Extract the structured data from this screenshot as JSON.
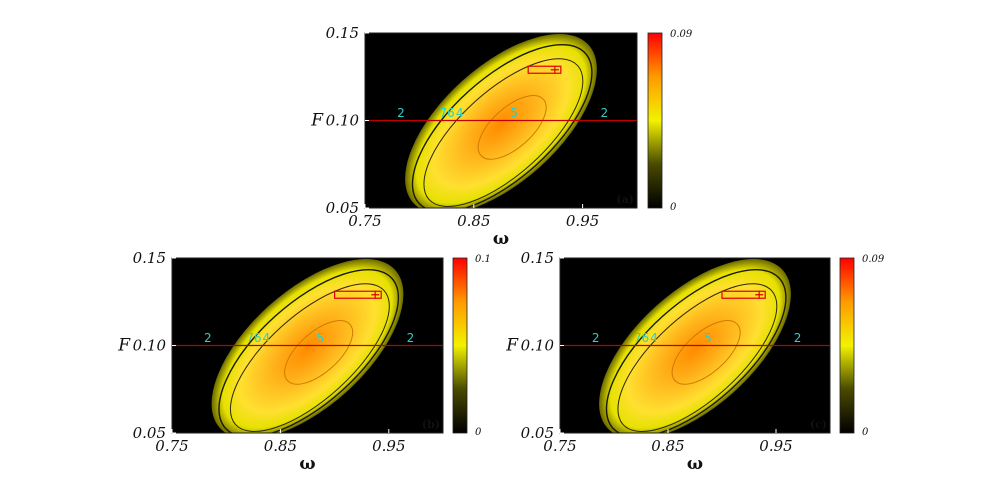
{
  "chart_data": [
    {
      "id": "a",
      "type": "heatmap",
      "panel_label": "(a)",
      "xlabel": "ω",
      "ylabel": "F",
      "xlim": [
        0.75,
        1.0
      ],
      "ylim": [
        0.05,
        0.15
      ],
      "xticks": [
        "0.75",
        "0.85",
        "0.95"
      ],
      "xtick_values": [
        0.75,
        0.85,
        0.95
      ],
      "yticks": [
        "0.05",
        "0.10",
        "0.15"
      ],
      "ytick_values": [
        0.05,
        0.1,
        0.15
      ],
      "colorbar": {
        "min": "0",
        "max": "0.09"
      },
      "hline_F": 0.1,
      "region": {
        "omega": [
          0.9,
          0.93
        ],
        "F": [
          0.127,
          0.131
        ]
      },
      "annotations": [
        {
          "text": "2",
          "omega": 0.783,
          "F": 0.102
        },
        {
          "text": "7",
          "omega": 0.822,
          "F": 0.102
        },
        {
          "text": "6",
          "omega": 0.829,
          "F": 0.102
        },
        {
          "text": "4",
          "omega": 0.837,
          "F": 0.102
        },
        {
          "text": "5",
          "omega": 0.887,
          "F": 0.102
        },
        {
          "text": "2",
          "omega": 0.97,
          "F": 0.102
        }
      ]
    },
    {
      "id": "b",
      "type": "heatmap",
      "panel_label": "(b)",
      "xlabel": "ω",
      "ylabel": "F",
      "xlim": [
        0.75,
        1.0
      ],
      "ylim": [
        0.05,
        0.15
      ],
      "xticks": [
        "0.75",
        "0.85",
        "0.95"
      ],
      "xtick_values": [
        0.75,
        0.85,
        0.95
      ],
      "yticks": [
        "0.05",
        "0.10",
        "0.15"
      ],
      "ytick_values": [
        0.05,
        0.1,
        0.15
      ],
      "colorbar": {
        "min": "0",
        "max": "0.1"
      },
      "hline_F": 0.1,
      "region": {
        "omega": [
          0.9,
          0.943
        ],
        "F": [
          0.127,
          0.131
        ]
      },
      "annotations": [
        {
          "text": "2",
          "omega": 0.783,
          "F": 0.102
        },
        {
          "text": "7",
          "omega": 0.822,
          "F": 0.102
        },
        {
          "text": "6",
          "omega": 0.829,
          "F": 0.102
        },
        {
          "text": "4",
          "omega": 0.837,
          "F": 0.102
        },
        {
          "text": "5",
          "omega": 0.887,
          "F": 0.102
        },
        {
          "text": "2",
          "omega": 0.97,
          "F": 0.102
        }
      ]
    },
    {
      "id": "c",
      "type": "heatmap",
      "panel_label": "(c)",
      "xlabel": "ω",
      "ylabel": "F",
      "xlim": [
        0.75,
        1.0
      ],
      "ylim": [
        0.05,
        0.15
      ],
      "xticks": [
        "0.75",
        "0.85",
        "0.95"
      ],
      "xtick_values": [
        0.75,
        0.85,
        0.95
      ],
      "yticks": [
        "0.05",
        "0.10",
        "0.15"
      ],
      "ytick_values": [
        0.05,
        0.1,
        0.15
      ],
      "colorbar": {
        "min": "0",
        "max": "0.09"
      },
      "hline_F": 0.1,
      "region": {
        "omega": [
          0.9,
          0.94
        ],
        "F": [
          0.127,
          0.131
        ]
      },
      "annotations": [
        {
          "text": "2",
          "omega": 0.783,
          "F": 0.102
        },
        {
          "text": "7",
          "omega": 0.822,
          "F": 0.102
        },
        {
          "text": "6",
          "omega": 0.829,
          "F": 0.102
        },
        {
          "text": "4",
          "omega": 0.837,
          "F": 0.102
        },
        {
          "text": "5",
          "omega": 0.887,
          "F": 0.102
        },
        {
          "text": "2",
          "omega": 0.97,
          "F": 0.102
        }
      ]
    }
  ]
}
